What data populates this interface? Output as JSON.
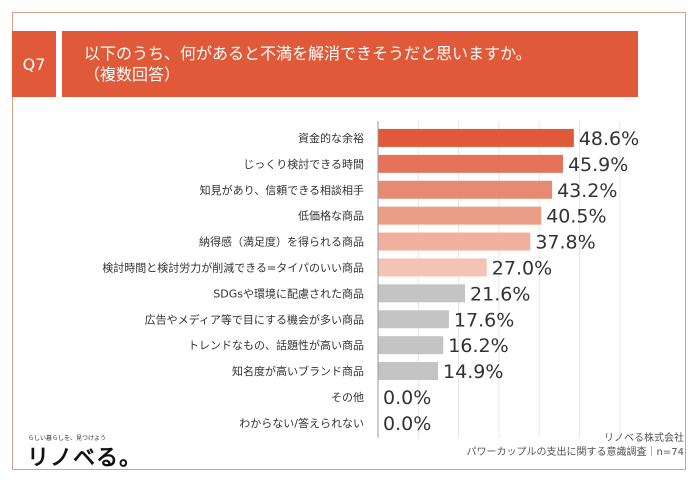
{
  "header": {
    "question_no": "Q7",
    "title_line1": "以下のうち、何があると不満を解消できそうだと思いますか。",
    "title_line2": "（複数回答）"
  },
  "chart_data": {
    "type": "bar",
    "orientation": "horizontal",
    "categories": [
      "資金的な余裕",
      "じっくり検討できる時間",
      "知見があり、信頼できる相談相手",
      "低価格な商品",
      "納得感（満足度）を得られる商品",
      "検討時間と検討労力が削減できる=タイパのいい商品",
      "SDGsや環境に配慮された商品",
      "広告やメディア等で目にする機会が多い商品",
      "トレンドなもの、話題性が高い商品",
      "知名度が高いブランド商品",
      "その他",
      "わからない/答えられない"
    ],
    "values": [
      48.6,
      45.9,
      43.2,
      40.5,
      37.8,
      27.0,
      21.6,
      17.6,
      16.2,
      14.9,
      0.0,
      0.0
    ],
    "value_labels": [
      "48.6%",
      "45.9%",
      "43.2%",
      "40.5%",
      "37.8%",
      "27.0%",
      "21.6%",
      "17.6%",
      "16.2%",
      "14.9%",
      "0.0%",
      "0.0%"
    ],
    "bar_colors": [
      "#e05a3a",
      "#e4735a",
      "#e88a72",
      "#eb9d88",
      "#efb09e",
      "#f3c4b6",
      "#c4c4c4",
      "#c4c4c4",
      "#c4c4c4",
      "#c4c4c4",
      "#c4c4c4",
      "#c4c4c4"
    ],
    "xlim": [
      0,
      60
    ],
    "grid": true,
    "title": "",
    "xlabel": "",
    "ylabel": ""
  },
  "footer": {
    "logo_tagline": "らしい暮らしを、見つけよう",
    "logo_text": "リノベる。",
    "source_company": "リノベる株式会社",
    "source_survey": "パワーカップルの支出に関する意識調査｜n=74"
  }
}
